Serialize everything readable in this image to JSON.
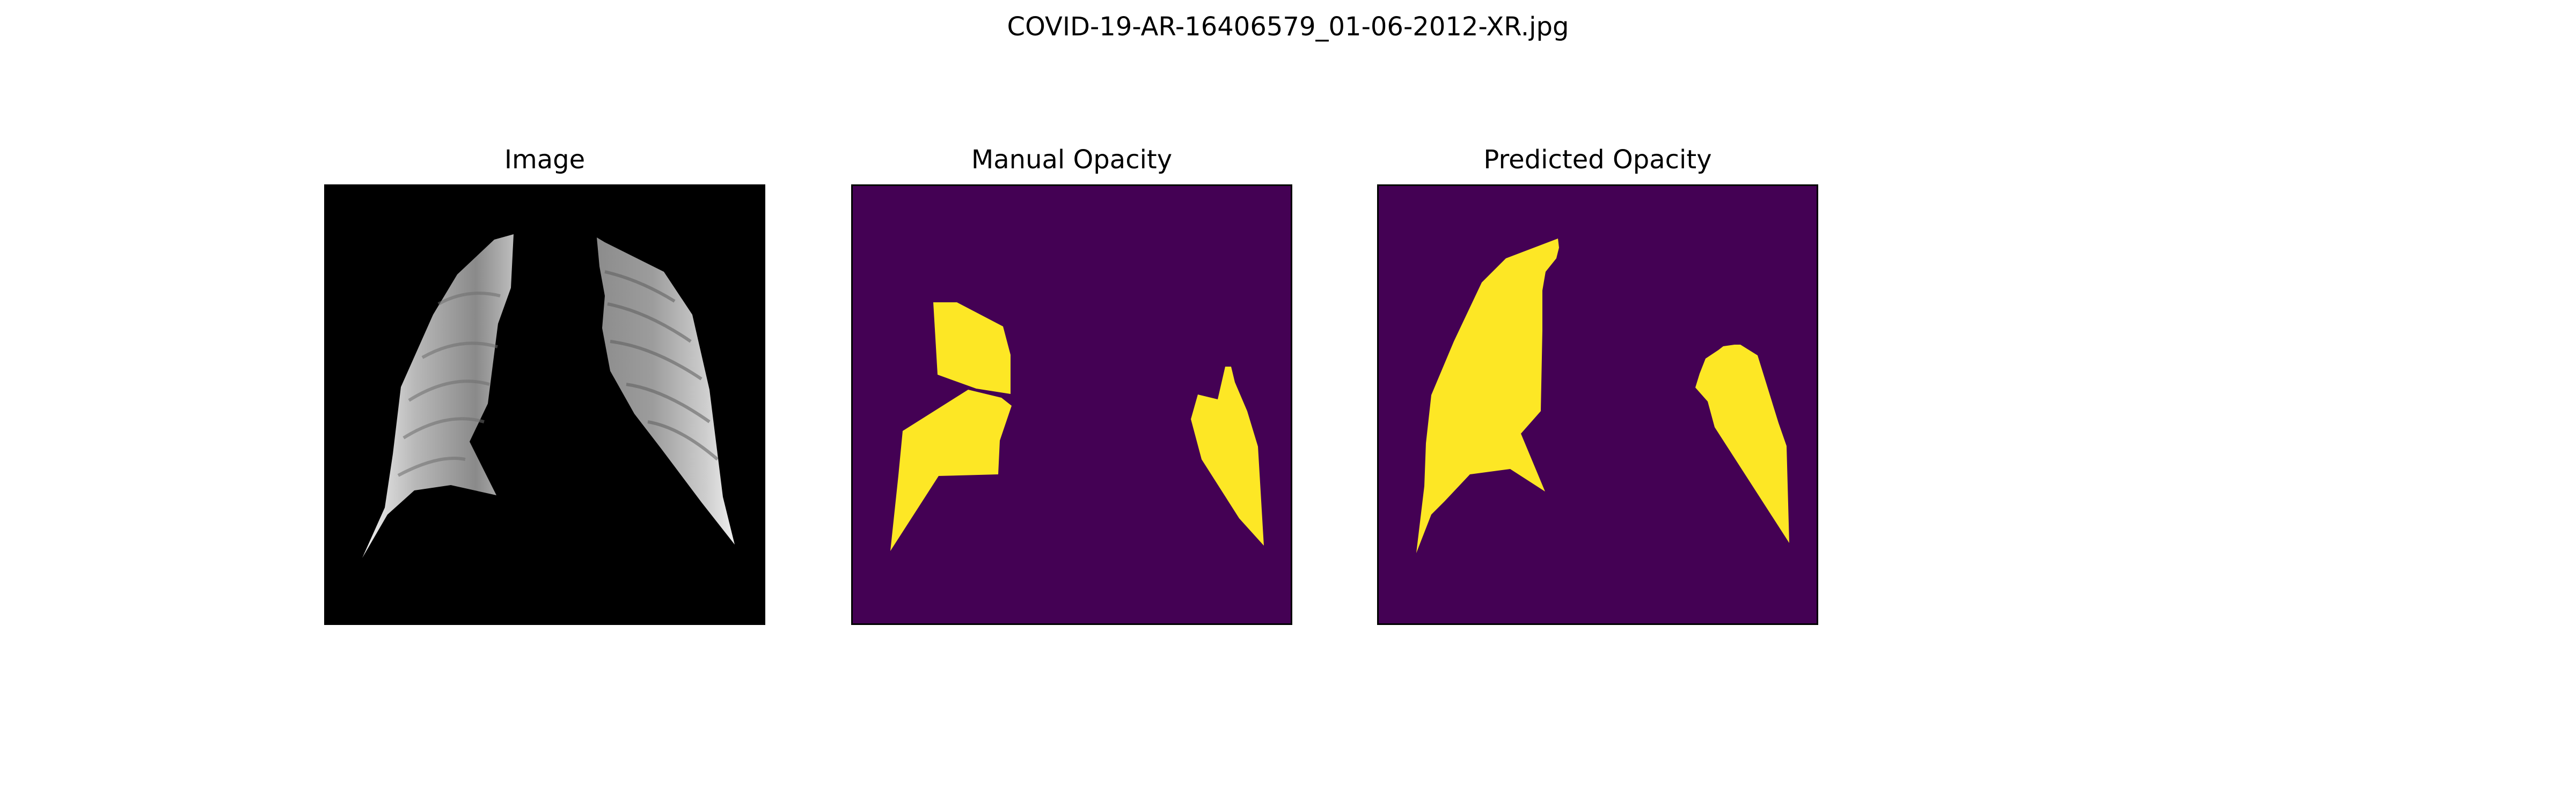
{
  "figure": {
    "suptitle": "COVID-19-AR-16406579_01-06-2012-XR.jpg"
  },
  "panels": [
    {
      "title": "Image",
      "content": "grayscale segmented chest x-ray lungs on black background"
    },
    {
      "title": "Manual Opacity",
      "content": "binary mask"
    },
    {
      "title": "Predicted Opacity",
      "content": "binary mask"
    }
  ],
  "colors": {
    "mask_background": "#440154",
    "mask_foreground": "#fde725",
    "image_background": "#000000",
    "axes_frame": "#000000",
    "page_background": "#ffffff"
  }
}
